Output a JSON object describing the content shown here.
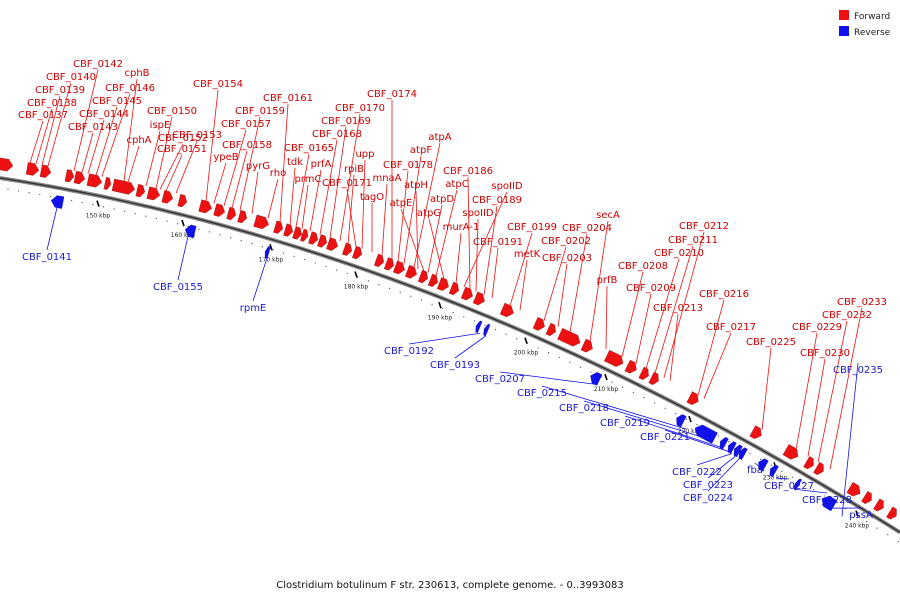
{
  "caption": "Clostridium botulinum F str. 230613, complete genome. - 0..3993083",
  "legend": {
    "forward_label": "Forward",
    "reverse_label": "Reverse",
    "forward_color": "#ee1111",
    "reverse_color": "#1111ee"
  },
  "colors": {
    "forward": "#ee1111",
    "reverse": "#1111ee",
    "backbone": "#777777"
  },
  "ticks": [
    "150 kbp",
    "160 kbp",
    "170 kbp",
    "180 kbp",
    "190 kbp",
    "200 kbp",
    "210 kbp",
    "220 kbp",
    "230 kbp",
    "240 kbp"
  ],
  "forward_genes": [
    "CBF_0137",
    "CBF_0138",
    "CBF_0139",
    "CBF_0140",
    "CBF_0142",
    "CBF_0143",
    "CBF_0144",
    "CBF_0145",
    "CBF_0146",
    "cphB",
    "cphA",
    "ispE",
    "CBF_0150",
    "CBF_0151",
    "CBF_0152",
    "CBF_0153",
    "CBF_0154",
    "ypeB",
    "CBF_0157",
    "CBF_0158",
    "CBF_0159",
    "pyrG",
    "rho",
    "CBF_0161",
    "tdk",
    "CBF_0165",
    "prmC",
    "prfA",
    "CBF_0168",
    "CBF_0169",
    "CBF_0170",
    "rpiB",
    "CBF_0171",
    "upp",
    "tagO",
    "mnaA",
    "CBF_0174",
    "CBF_0178",
    "atpF",
    "atpA",
    "atpH",
    "atpE",
    "atpD",
    "atpC",
    "atpG",
    "murA-1",
    "spoIID",
    "CBF_0186",
    "spoIID",
    "CBF_0189",
    "CBF_0191",
    "CBF_0199",
    "metK",
    "CBF_0202",
    "CBF_0203",
    "CBF_0204",
    "secA",
    "prfB",
    "CBF_0208",
    "CBF_0209",
    "CBF_0210",
    "CBF_0211",
    "CBF_0212",
    "CBF_0213",
    "CBF_0216",
    "CBF_0217",
    "CBF_0225",
    "CBF_0229",
    "CBF_0230",
    "CBF_0232",
    "CBF_0233"
  ],
  "reverse_genes": [
    "CBF_0141",
    "CBF_0155",
    "rpmE",
    "CBF_0192",
    "CBF_0193",
    "CBF_0207",
    "CBF_0215",
    "CBF_0218",
    "CBF_0219",
    "CBF_0221",
    "CBF_0222",
    "CBF_0223",
    "CBF_0224",
    "fba",
    "CBF_0227",
    "CBF_0228",
    "pssA",
    "CBF_0235"
  ]
}
